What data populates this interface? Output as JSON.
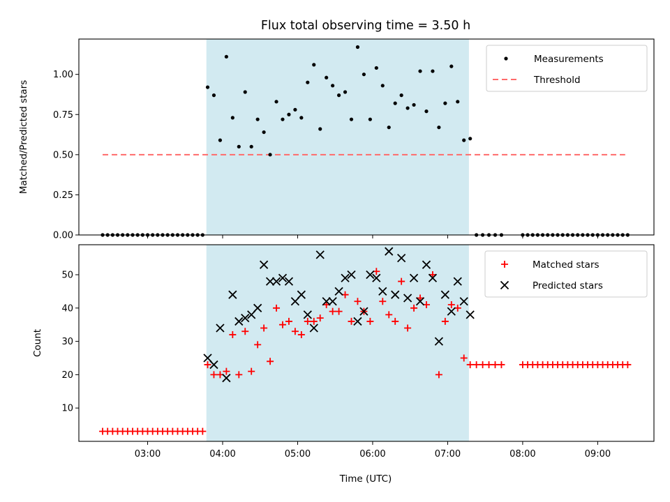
{
  "title": "Flux total observing time = 3.50 h",
  "xlabel": "Time (UTC)",
  "colors": {
    "shade": "#add8e6",
    "threshold": "#ff6a6a",
    "matched": "#ff0000",
    "predicted": "#000000",
    "measure": "#000000"
  },
  "chart_data": [
    {
      "type": "scatter",
      "ylabel": "Matched/Predicted stars",
      "ylim": [
        0,
        1.22
      ],
      "yticks": [
        0,
        0.25,
        0.5,
        0.75,
        1.0
      ],
      "ytick_labels": [
        "0.00",
        "0.25",
        "0.50",
        "0.75",
        "1.00"
      ],
      "xlim": [
        "02:05",
        "09:45"
      ],
      "shaded_interval": [
        "03:47",
        "07:17"
      ],
      "legend": {
        "location": "upper right",
        "entries": [
          "Measurements",
          "Threshold"
        ]
      },
      "threshold": {
        "name": "Threshold",
        "x": [
          "02:24",
          "09:22"
        ],
        "y": 0.5
      },
      "series": [
        {
          "name": "Measurements",
          "x": [
            "02:24",
            "02:28",
            "02:32",
            "02:36",
            "02:40",
            "02:44",
            "02:48",
            "02:52",
            "02:56",
            "03:00",
            "03:04",
            "03:08",
            "03:12",
            "03:16",
            "03:20",
            "03:24",
            "03:28",
            "03:32",
            "03:36",
            "03:40",
            "03:44",
            "03:48",
            "03:53",
            "03:58",
            "04:03",
            "04:08",
            "04:13",
            "04:18",
            "04:23",
            "04:28",
            "04:33",
            "04:38",
            "04:43",
            "04:48",
            "04:53",
            "04:58",
            "05:03",
            "05:08",
            "05:13",
            "05:18",
            "05:23",
            "05:28",
            "05:33",
            "05:38",
            "05:43",
            "05:48",
            "05:53",
            "05:58",
            "06:03",
            "06:08",
            "06:13",
            "06:18",
            "06:23",
            "06:28",
            "06:33",
            "06:38",
            "06:43",
            "06:48",
            "06:53",
            "06:58",
            "07:03",
            "07:08",
            "07:13",
            "07:18",
            "07:23",
            "07:28",
            "07:33",
            "07:38",
            "07:43",
            "08:00",
            "08:04",
            "08:08",
            "08:12",
            "08:16",
            "08:20",
            "08:24",
            "08:28",
            "08:32",
            "08:36",
            "08:40",
            "08:44",
            "08:48",
            "08:52",
            "08:56",
            "09:00",
            "09:04",
            "09:08",
            "09:12",
            "09:16",
            "09:20",
            "09:24"
          ],
          "y": [
            0,
            0,
            0,
            0,
            0,
            0,
            0,
            0,
            0,
            0,
            0,
            0,
            0,
            0,
            0,
            0,
            0,
            0,
            0,
            0,
            0,
            0.92,
            0.87,
            0.59,
            1.11,
            0.73,
            0.55,
            0.89,
            0.55,
            0.72,
            0.64,
            0.5,
            0.83,
            0.72,
            0.75,
            0.78,
            0.73,
            0.95,
            1.06,
            0.66,
            0.98,
            0.93,
            0.87,
            0.89,
            0.72,
            1.17,
            1.0,
            0.72,
            1.04,
            0.93,
            0.67,
            0.82,
            0.87,
            0.79,
            0.81,
            1.02,
            0.77,
            1.02,
            0.67,
            0.82,
            1.05,
            0.83,
            0.59,
            0.6,
            0,
            0,
            0,
            0,
            0,
            0,
            0,
            0,
            0,
            0,
            0,
            0,
            0,
            0,
            0,
            0,
            0,
            0,
            0,
            0,
            0,
            0,
            0,
            0,
            0,
            0,
            0
          ]
        }
      ]
    },
    {
      "type": "scatter",
      "ylabel": "Count",
      "ylim": [
        0,
        59
      ],
      "yticks": [
        10,
        20,
        30,
        40,
        50
      ],
      "ytick_labels": [
        "10",
        "20",
        "30",
        "40",
        "50"
      ],
      "xlim": [
        "02:05",
        "09:45"
      ],
      "xticks": [
        "03:00",
        "04:00",
        "05:00",
        "06:00",
        "07:00",
        "08:00",
        "09:00"
      ],
      "shaded_interval": [
        "03:47",
        "07:17"
      ],
      "legend": {
        "location": "upper right",
        "entries": [
          "Matched stars",
          "Predicted stars"
        ]
      },
      "series": [
        {
          "name": "Matched stars",
          "marker": "+",
          "x": [
            "02:24",
            "02:28",
            "02:32",
            "02:36",
            "02:40",
            "02:44",
            "02:48",
            "02:52",
            "02:56",
            "03:00",
            "03:04",
            "03:08",
            "03:12",
            "03:16",
            "03:20",
            "03:24",
            "03:28",
            "03:32",
            "03:36",
            "03:40",
            "03:44",
            "03:48",
            "03:53",
            "03:58",
            "04:03",
            "04:08",
            "04:13",
            "04:18",
            "04:23",
            "04:28",
            "04:33",
            "04:38",
            "04:43",
            "04:48",
            "04:53",
            "04:58",
            "05:03",
            "05:08",
            "05:13",
            "05:18",
            "05:23",
            "05:28",
            "05:33",
            "05:38",
            "05:43",
            "05:48",
            "05:53",
            "05:58",
            "06:03",
            "06:08",
            "06:13",
            "06:18",
            "06:23",
            "06:28",
            "06:33",
            "06:38",
            "06:43",
            "06:48",
            "06:53",
            "06:58",
            "07:03",
            "07:08",
            "07:13",
            "07:18",
            "07:23",
            "07:28",
            "07:33",
            "07:38",
            "07:43",
            "08:00",
            "08:04",
            "08:08",
            "08:12",
            "08:16",
            "08:20",
            "08:24",
            "08:28",
            "08:32",
            "08:36",
            "08:40",
            "08:44",
            "08:48",
            "08:52",
            "08:56",
            "09:00",
            "09:04",
            "09:08",
            "09:12",
            "09:16",
            "09:20",
            "09:24"
          ],
          "y": [
            3,
            3,
            3,
            3,
            3,
            3,
            3,
            3,
            3,
            3,
            3,
            3,
            3,
            3,
            3,
            3,
            3,
            3,
            3,
            3,
            3,
            23,
            20,
            20,
            21,
            32,
            20,
            33,
            21,
            29,
            34,
            24,
            40,
            35,
            36,
            33,
            32,
            36,
            36,
            37,
            41,
            39,
            39,
            44,
            36,
            42,
            39,
            36,
            51,
            42,
            38,
            36,
            48,
            34,
            40,
            43,
            41,
            50,
            20,
            36,
            41,
            40,
            25,
            23,
            23,
            23,
            23,
            23,
            23,
            23,
            23,
            23,
            23,
            23,
            23,
            23,
            23,
            23,
            23,
            23,
            23,
            23,
            23,
            23,
            23,
            23,
            23,
            23,
            23,
            23,
            23
          ]
        },
        {
          "name": "Predicted stars",
          "marker": "x",
          "x": [
            "03:48",
            "03:53",
            "03:58",
            "04:03",
            "04:08",
            "04:13",
            "04:18",
            "04:23",
            "04:28",
            "04:33",
            "04:38",
            "04:43",
            "04:48",
            "04:53",
            "04:58",
            "05:03",
            "05:08",
            "05:13",
            "05:18",
            "05:23",
            "05:28",
            "05:33",
            "05:38",
            "05:43",
            "05:48",
            "05:53",
            "05:58",
            "06:03",
            "06:08",
            "06:13",
            "06:18",
            "06:23",
            "06:28",
            "06:33",
            "06:38",
            "06:43",
            "06:48",
            "06:53",
            "06:58",
            "07:03",
            "07:08",
            "07:13",
            "07:18"
          ],
          "y": [
            25,
            23,
            34,
            19,
            44,
            36,
            37,
            38,
            40,
            53,
            48,
            48,
            49,
            48,
            42,
            44,
            38,
            34,
            56,
            42,
            42,
            45,
            49,
            50,
            36,
            39,
            50,
            49,
            45,
            57,
            44,
            55,
            43,
            49,
            42,
            53,
            49,
            30,
            44,
            39,
            48,
            42,
            38
          ]
        }
      ]
    }
  ]
}
